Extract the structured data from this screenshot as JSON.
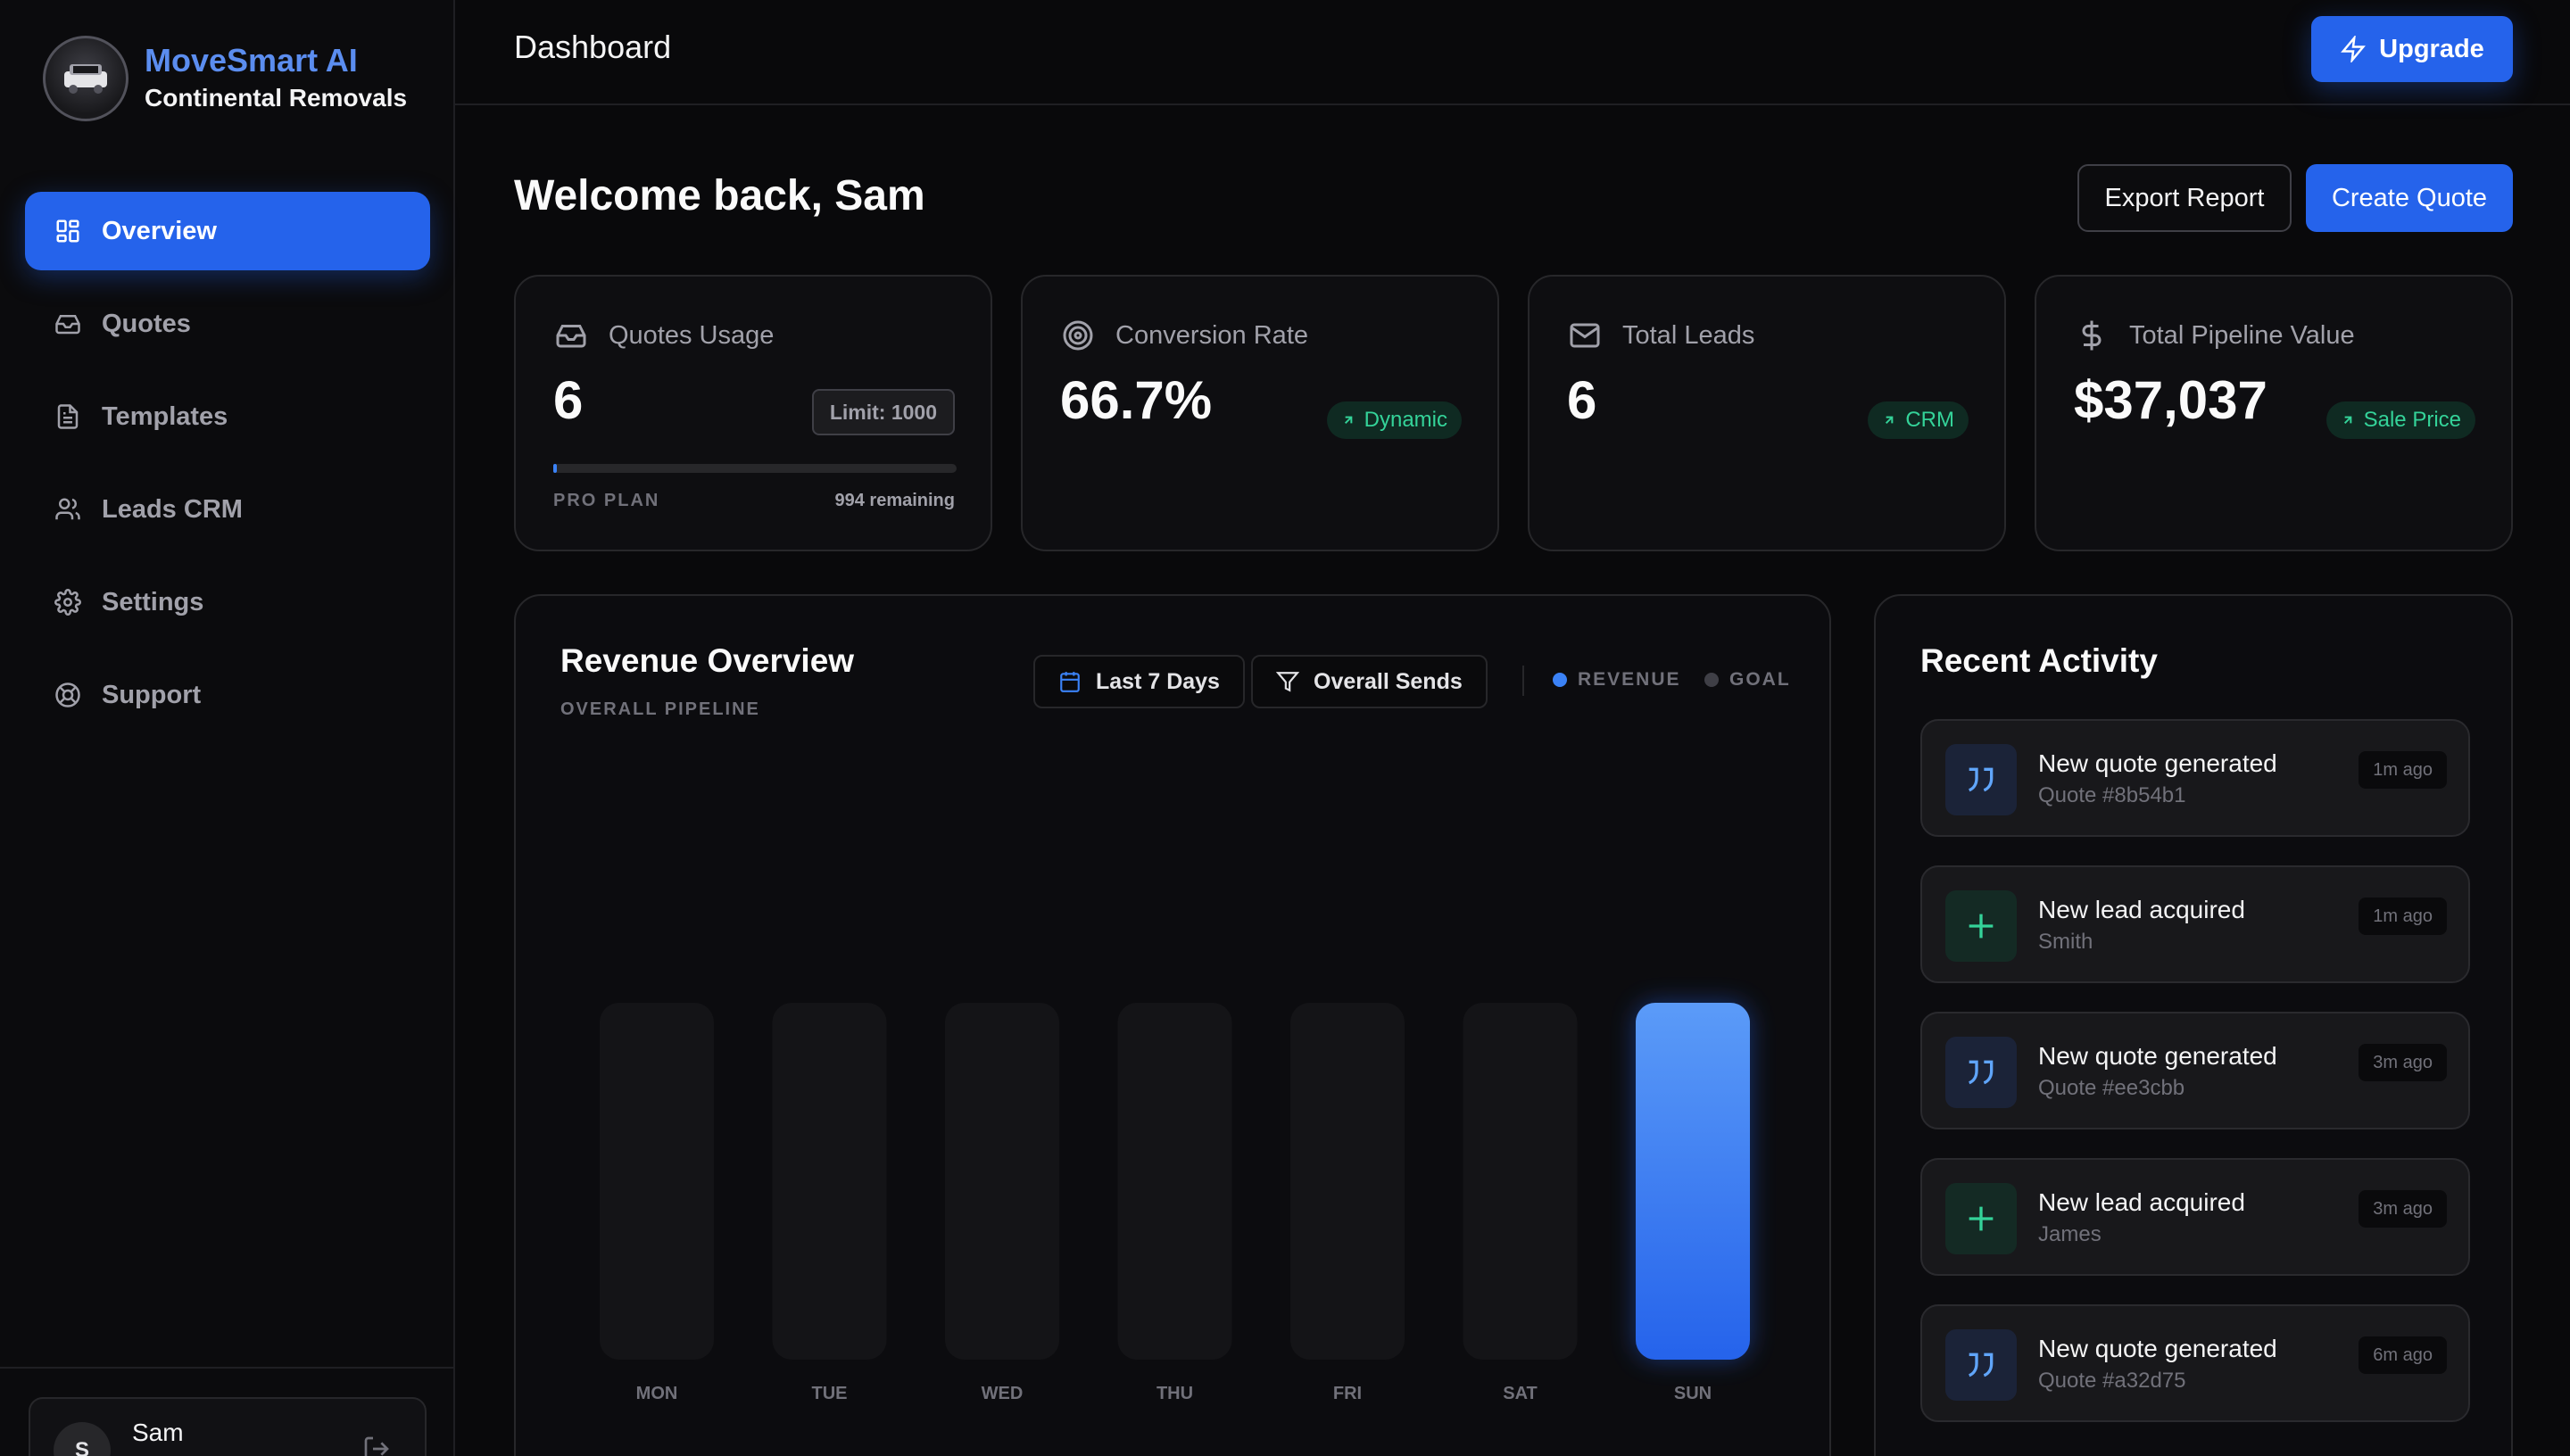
{
  "brand": {
    "name": "MoveSmart AI",
    "subtitle": "Continental Removals"
  },
  "sidebar": {
    "items": [
      {
        "label": "Overview",
        "icon": "grid-icon",
        "active": true
      },
      {
        "label": "Quotes",
        "icon": "inbox-icon"
      },
      {
        "label": "Templates",
        "icon": "file-icon"
      },
      {
        "label": "Leads CRM",
        "icon": "users-icon"
      },
      {
        "label": "Settings",
        "icon": "gear-icon"
      },
      {
        "label": "Support",
        "icon": "lifebuoy-icon"
      }
    ],
    "user": {
      "initial": "S",
      "name": "Sam"
    }
  },
  "header": {
    "title": "Dashboard",
    "upgrade_label": "Upgrade"
  },
  "main": {
    "welcome": "Welcome back, Sam",
    "export_label": "Export Report",
    "create_label": "Create Quote"
  },
  "stats": {
    "quotes": {
      "label": "Quotes Usage",
      "value": "6",
      "limit": "Limit: 1000",
      "plan": "PRO PLAN",
      "remaining": "994 remaining",
      "progress_fraction": 0.006
    },
    "conversion": {
      "label": "Conversion Rate",
      "value": "66.7%",
      "badge": "Dynamic"
    },
    "leads": {
      "label": "Total Leads",
      "value": "6",
      "badge": "CRM"
    },
    "pipeline": {
      "label": "Total Pipeline Value",
      "value": "$37,037",
      "badge": "Sale Price"
    }
  },
  "revenue": {
    "title": "Revenue Overview",
    "subtitle": "OVERALL PIPELINE",
    "range_label": "Last 7 Days",
    "filter_label": "Overall Sends",
    "legend_revenue": "REVENUE",
    "legend_goal": "GOAL"
  },
  "chart_data": {
    "type": "bar",
    "categories": [
      "MON",
      "TUE",
      "WED",
      "THU",
      "FRI",
      "SAT",
      "SUN"
    ],
    "series": [
      {
        "name": "REVENUE",
        "values": [
          0,
          0,
          0,
          0,
          0,
          0,
          1
        ]
      }
    ],
    "ylim": [
      0,
      1
    ],
    "grid": false,
    "legend": "top-right"
  },
  "activity": {
    "title": "Recent Activity",
    "items": [
      {
        "type": "quote",
        "icon": "quote-icon",
        "title": "New quote generated",
        "detail": "Quote #8b54b1",
        "time": "1m ago"
      },
      {
        "type": "lead",
        "icon": "plus-icon",
        "title": "New lead acquired",
        "detail": "Smith",
        "time": "1m ago"
      },
      {
        "type": "quote",
        "icon": "quote-icon",
        "title": "New quote generated",
        "detail": "Quote #ee3cbb",
        "time": "3m ago"
      },
      {
        "type": "lead",
        "icon": "plus-icon",
        "title": "New lead acquired",
        "detail": "James",
        "time": "3m ago"
      },
      {
        "type": "quote",
        "icon": "quote-icon",
        "title": "New quote generated",
        "detail": "Quote #a32d75",
        "time": "6m ago"
      }
    ]
  },
  "colors": {
    "accent": "#2563eb",
    "success": "#34d399",
    "background": "#09090b"
  }
}
